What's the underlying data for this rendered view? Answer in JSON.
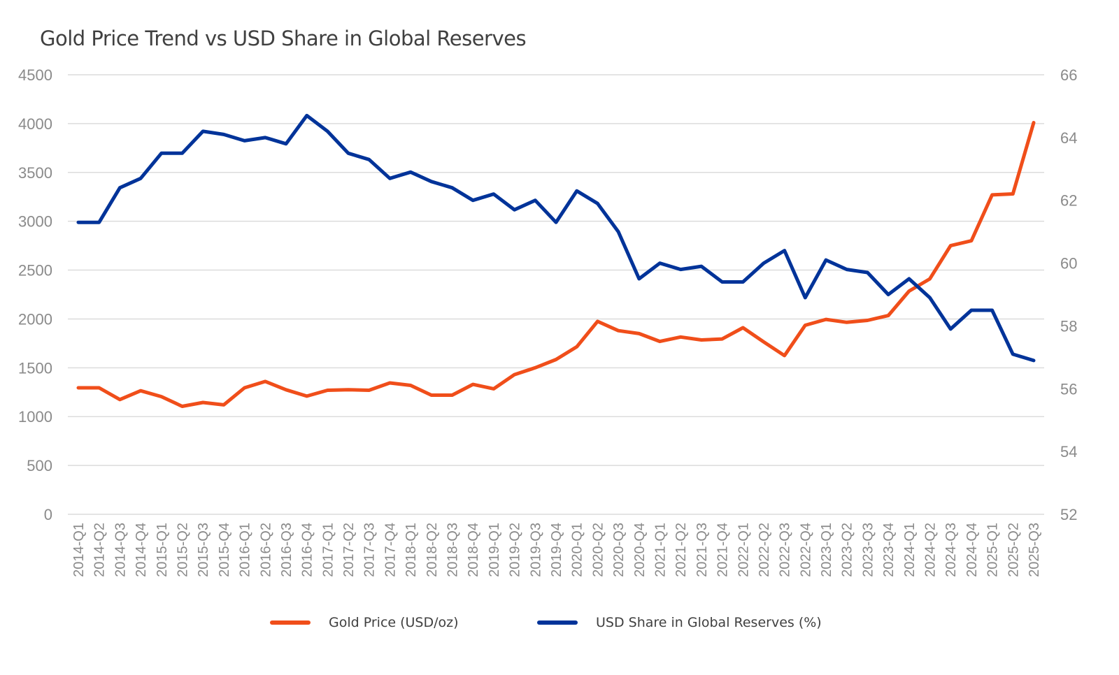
{
  "chart_data": {
    "type": "line",
    "title": "Gold Price Trend vs USD Share in Global Reserves",
    "xlabel": "",
    "ylabel_left": "",
    "ylabel_right": "",
    "grid": true,
    "legend_position": "bottom",
    "y_left": {
      "min": 0,
      "max": 4500,
      "ticks": [
        "0",
        "500",
        "1000",
        "1500",
        "2000",
        "2500",
        "3000",
        "3500",
        "4000",
        "4500"
      ]
    },
    "y_right": {
      "min": 52,
      "max": 66,
      "ticks": [
        "52",
        "54",
        "56",
        "58",
        "60",
        "62",
        "64",
        "66"
      ]
    },
    "categories": [
      "2014-Q1",
      "2014-Q2",
      "2014-Q3",
      "2014-Q4",
      "2015-Q1",
      "2015-Q2",
      "2015-Q3",
      "2015-Q4",
      "2016-Q1",
      "2016-Q2",
      "2016-Q3",
      "2016-Q4",
      "2017-Q1",
      "2017-Q2",
      "2017-Q3",
      "2017-Q4",
      "2018-Q1",
      "2018-Q2",
      "2018-Q3",
      "2018-Q4",
      "2019-Q1",
      "2019-Q2",
      "2019-Q3",
      "2019-Q4",
      "2020-Q1",
      "2020-Q2",
      "2020-Q3",
      "2020-Q4",
      "2021-Q1",
      "2021-Q2",
      "2021-Q3",
      "2021-Q4",
      "2022-Q1",
      "2022-Q2",
      "2022-Q3",
      "2022-Q4",
      "2023-Q1",
      "2023-Q2",
      "2023-Q3",
      "2023-Q4",
      "2024-Q1",
      "2024-Q2",
      "2024-Q3",
      "2024-Q4",
      "2025-Q1",
      "2025-Q2",
      "2025-Q3"
    ],
    "series": [
      {
        "name": "Gold Price (USD/oz)",
        "axis": "left",
        "color": "#F04E1A",
        "values": [
          1295,
          1295,
          1175,
          1265,
          1205,
          1105,
          1145,
          1120,
          1295,
          1360,
          1275,
          1210,
          1270,
          1275,
          1270,
          1345,
          1320,
          1220,
          1220,
          1330,
          1285,
          1430,
          1500,
          1585,
          1715,
          1975,
          1880,
          1850,
          1770,
          1815,
          1785,
          1795,
          1910,
          1765,
          1625,
          1935,
          1995,
          1965,
          1985,
          2035,
          2285,
          2410,
          2750,
          2800,
          3270,
          3280,
          4010
        ]
      },
      {
        "name": "USD Share in Global Reserves (%)",
        "axis": "right",
        "color": "#003399",
        "values": [
          61.3,
          61.3,
          62.4,
          62.7,
          63.5,
          63.5,
          64.2,
          64.1,
          63.9,
          64.0,
          63.8,
          64.7,
          64.2,
          63.5,
          63.3,
          62.7,
          62.9,
          62.6,
          62.4,
          62.0,
          62.2,
          61.7,
          62.0,
          61.3,
          62.3,
          61.9,
          61.0,
          59.5,
          60.0,
          59.8,
          59.9,
          59.4,
          59.4,
          60.0,
          60.4,
          58.9,
          60.1,
          59.8,
          59.7,
          59.0,
          59.5,
          58.9,
          57.9,
          58.5,
          58.5,
          57.1,
          56.9
        ]
      }
    ]
  }
}
